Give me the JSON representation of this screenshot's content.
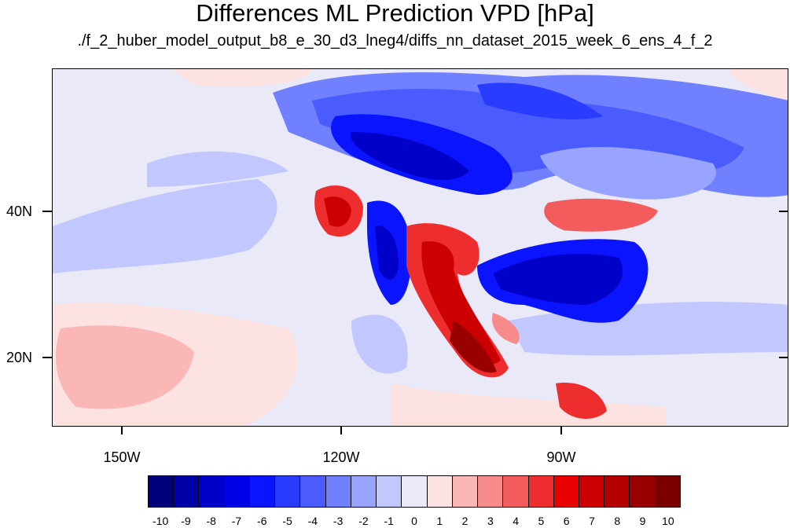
{
  "title": "Differences ML Prediction VPD [hPa]",
  "subtitle": "./f_2_huber_model_output_b8_e_30_d3_lneg4/diffs_nn_dataset_2015_week_6_ens_4_f_2",
  "map": {
    "lat_labels": [
      "40N",
      "20N"
    ],
    "lon_labels": [
      "150W",
      "120W",
      "90W"
    ]
  },
  "colorbar": {
    "labels": [
      "-10",
      "-9",
      "-8",
      "-7",
      "-6",
      "-5",
      "-4",
      "-3",
      "-2",
      "-1",
      "0",
      "1",
      "2",
      "3",
      "4",
      "5",
      "6",
      "7",
      "8",
      "9",
      "10"
    ],
    "colors": [
      "#00007a",
      "#0000a6",
      "#0000c8",
      "#0000e6",
      "#0a14ff",
      "#2a3cff",
      "#4b5cff",
      "#7080ff",
      "#98a4ff",
      "#c2c8ff",
      "#e9e9f8",
      "#fde2e2",
      "#fbb6b6",
      "#f78a8a",
      "#f25c5c",
      "#ee2e2e",
      "#e80000",
      "#cc0000",
      "#b30000",
      "#990000",
      "#7a0000"
    ]
  }
}
